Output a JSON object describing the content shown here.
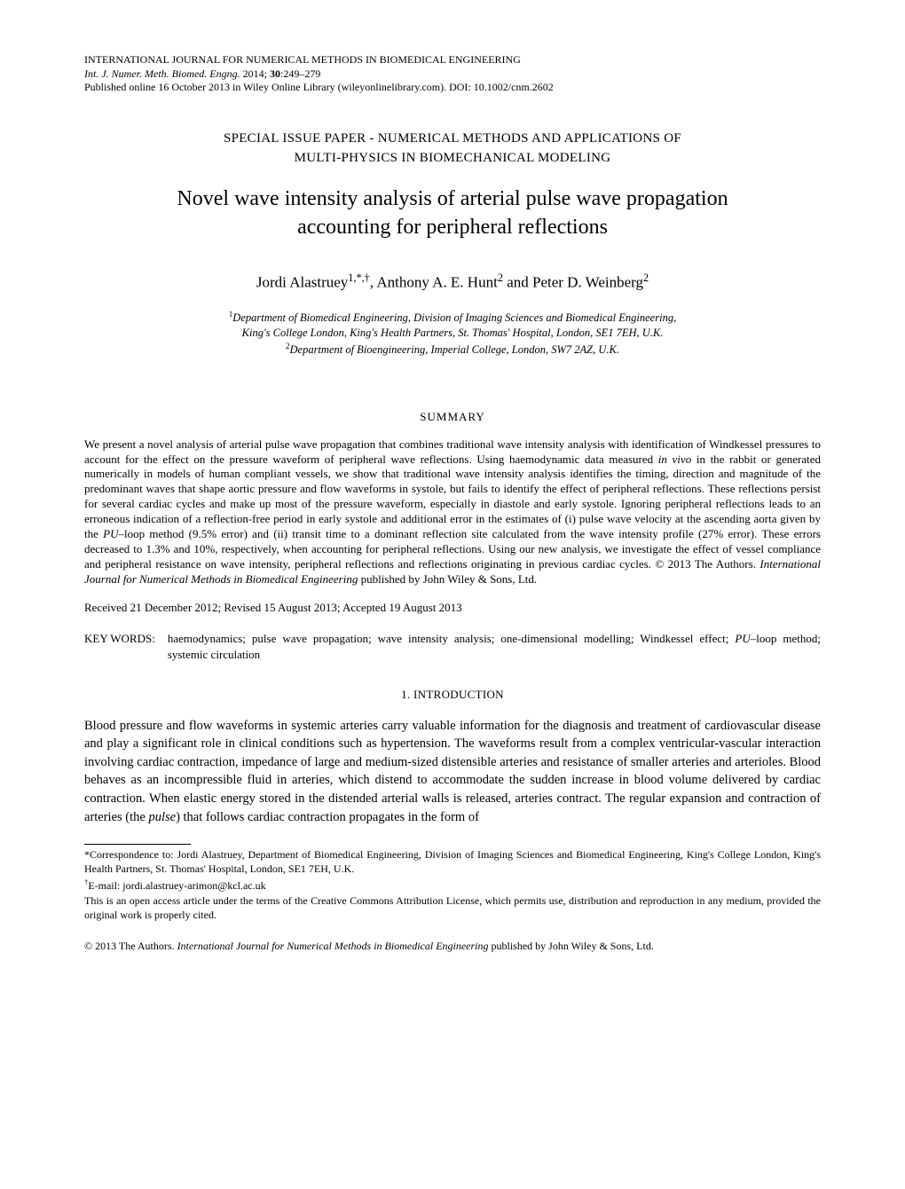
{
  "header": {
    "journal_caps": "INTERNATIONAL JOURNAL FOR NUMERICAL METHODS IN BIOMEDICAL ENGINEERING",
    "journal_italic": "Int. J. Numer. Meth. Biomed. Engng.",
    "year_vol": " 2014; ",
    "volume_bold": "30",
    "pages": ":249–279",
    "pub_line": "Published online 16 October 2013 in Wiley Online Library (wileyonlinelibrary.com). DOI: 10.1002/cnm.2602"
  },
  "section_header_line1": "SPECIAL ISSUE PAPER - NUMERICAL METHODS AND APPLICATIONS OF",
  "section_header_line2": "MULTI-PHYSICS IN BIOMECHANICAL MODELING",
  "title_line1": "Novel wave intensity analysis of arterial pulse wave propagation",
  "title_line2": "accounting for peripheral reflections",
  "authors": {
    "a1_name": "Jordi Alastruey",
    "a1_sup": "1,*,†",
    "a2_name": ", Anthony A. E. Hunt",
    "a2_sup": "2",
    "a3_name": " and Peter D. Weinberg",
    "a3_sup": "2"
  },
  "affiliations": {
    "aff1_sup": "1",
    "aff1_line1": "Department of Biomedical Engineering, Division of Imaging Sciences and Biomedical Engineering,",
    "aff1_line2": "King's College London, King's Health Partners, St. Thomas' Hospital, London, SE1 7EH, U.K.",
    "aff2_sup": "2",
    "aff2_text": "Department of Bioengineering, Imperial College, London, SW7 2AZ, U.K."
  },
  "summary": {
    "heading": "SUMMARY",
    "text_part1": "We present a novel analysis of arterial pulse wave propagation that combines traditional wave intensity analysis with identification of Windkessel pressures to account for the effect on the pressure waveform of peripheral wave reflections. Using haemodynamic data measured ",
    "text_invivo": "in vivo",
    "text_part2": " in the rabbit or generated numerically in models of human compliant vessels, we show that traditional wave intensity analysis identifies the timing, direction and magnitude of the predominant waves that shape aortic pressure and flow waveforms in systole, but fails to identify the effect of peripheral reflections. These reflections persist for several cardiac cycles and make up most of the pressure waveform, especially in diastole and early systole. Ignoring peripheral reflections leads to an erroneous indication of a reflection-free period in early systole and additional error in the estimates of (i) pulse wave velocity at the ascending aorta given by the ",
    "text_pu": "PU",
    "text_part3": "–loop method (9.5% error) and (ii) transit time to a dominant reflection site calculated from the wave intensity profile (27% error). These errors decreased to 1.3% and 10%, respectively, when accounting for peripheral reflections. Using our new analysis, we investigate the effect of vessel compliance and peripheral resistance on wave intensity, peripheral reflections and reflections originating in previous cardiac cycles. © 2013 The Authors. ",
    "text_journal": "International Journal for Numerical Methods in Biomedical Engineering",
    "text_part4": " published by John Wiley & Sons, Ltd."
  },
  "dates": "Received 21 December 2012; Revised 15 August 2013; Accepted 19 August 2013",
  "keywords": {
    "label": "KEY WORDS:",
    "text_part1": "haemodynamics; pulse wave propagation; wave intensity analysis; one-dimensional modelling; Windkessel effect; ",
    "text_pu": "PU",
    "text_part2": "–loop method; systemic circulation"
  },
  "introduction": {
    "heading": "1.  INTRODUCTION",
    "text_part1": "Blood pressure and flow waveforms in systemic arteries carry valuable information for the diagnosis and treatment of cardiovascular disease and play a significant role in clinical conditions such as hypertension. The waveforms result from a complex ventricular-vascular interaction involving cardiac contraction, impedance of large and medium-sized distensible arteries and resistance of smaller arteries and arterioles. Blood behaves as an incompressible fluid in arteries, which distend to accommodate the sudden increase in blood volume delivered by cardiac contraction. When elastic energy stored in the distended arterial walls is released, arteries contract. The regular expansion and contraction of arteries (the ",
    "text_pulse": "pulse",
    "text_part2": ") that follows cardiac contraction propagates in the form of"
  },
  "footnotes": {
    "corr_text": "*Correspondence to: Jordi Alastruey, Department of Biomedical Engineering, Division of Imaging Sciences and Biomedical Engineering, King's College London, King's Health Partners, St. Thomas' Hospital, London, SE1 7EH, U.K.",
    "email_sup": "†",
    "email_text": "E-mail: jordi.alastruey-arimon@kcl.ac.uk",
    "license_text": "This is an open access article under the terms of the Creative Commons Attribution License, which permits use, distribution and reproduction in any medium, provided the original work is properly cited."
  },
  "copyright": {
    "part1": "© 2013 The Authors. ",
    "journal": "International Journal for Numerical Methods in Biomedical Engineering",
    "part2": " published by John Wiley & Sons, Ltd."
  }
}
